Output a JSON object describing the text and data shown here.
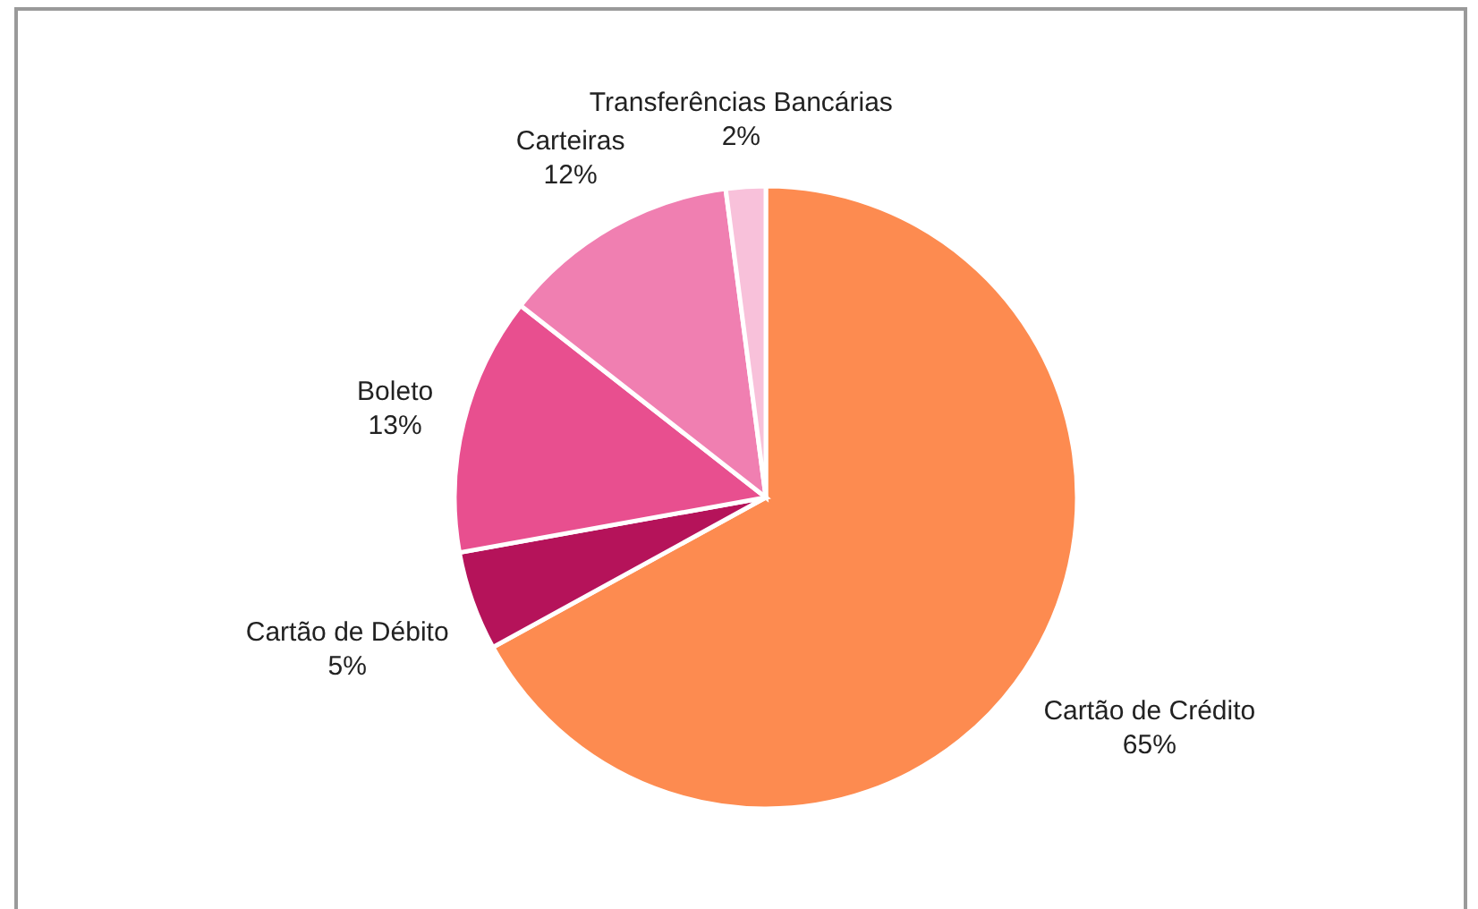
{
  "chart_data": {
    "type": "pie",
    "categories": [
      "Cartão de Crédito",
      "Cartão de Débito",
      "Boleto",
      "Carteiras",
      "Transferências Bancárias"
    ],
    "values": [
      65,
      5,
      13,
      12,
      2
    ],
    "value_labels": [
      "65%",
      "5%",
      "13%",
      "12%",
      "2%"
    ],
    "colors": [
      "#fd8b50",
      "#b5135a",
      "#e84f8f",
      "#f07fb1",
      "#f8c1da"
    ]
  }
}
